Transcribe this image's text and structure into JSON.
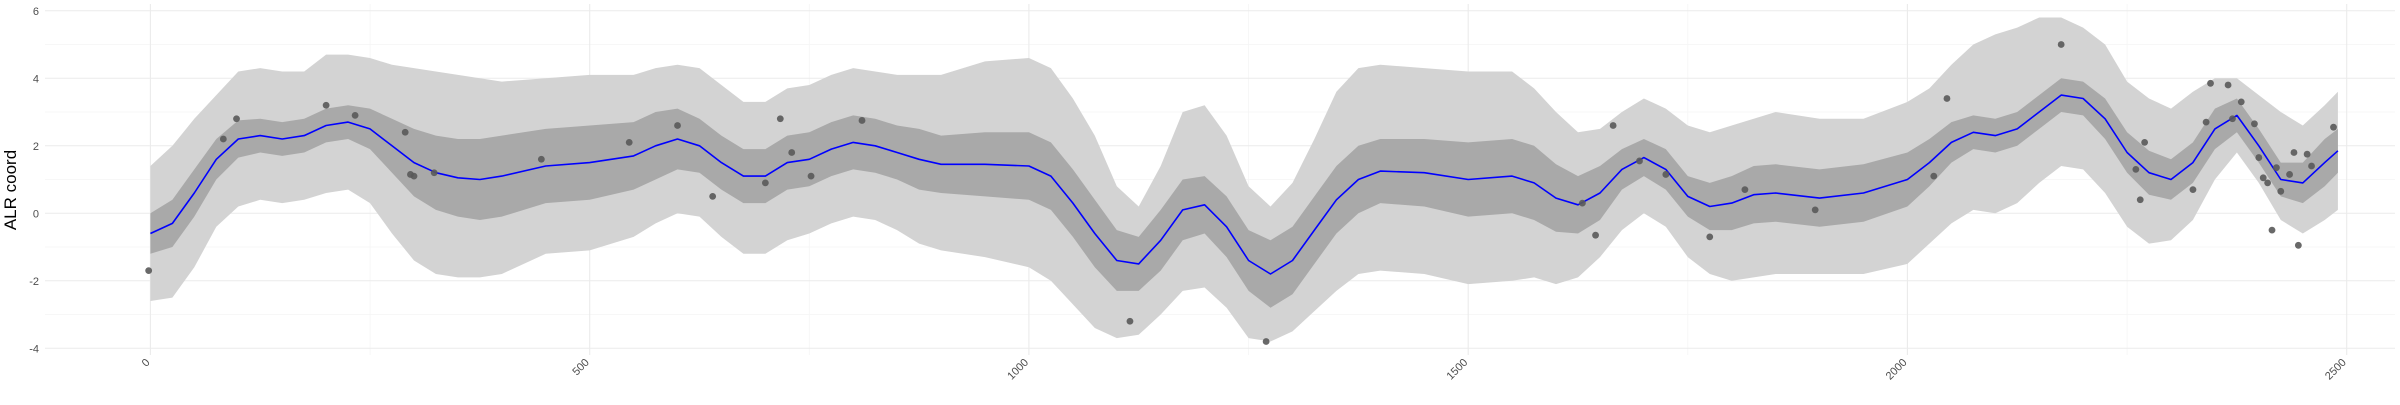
{
  "chart_data": {
    "type": "line",
    "title": "",
    "xlabel": "",
    "ylabel": "ALR coord",
    "xlim": [
      -120,
      2555
    ],
    "ylim": [
      -4.2,
      6.2
    ],
    "x_ticks": [
      0,
      500,
      1000,
      1500,
      2000,
      2500
    ],
    "x_tick_labels": [
      "0",
      "500",
      "1000",
      "1500",
      "2000",
      "2500"
    ],
    "x_tick_rotation_deg": -45,
    "y_ticks": [
      -4,
      -2,
      0,
      2,
      4,
      6
    ],
    "y_tick_labels": [
      "-4",
      "-2",
      "0",
      "2",
      "4",
      "6"
    ],
    "grid": true,
    "colors": {
      "mean_line": "#0000ff",
      "inner_band": "#a9a9a9",
      "outer_band": "#d3d3d3",
      "points": "#595959",
      "grid_major": "#ebebeb",
      "grid_minor": "#f5f5f5"
    },
    "mean_line": {
      "x": [
        0,
        25,
        50,
        75,
        100,
        125,
        150,
        175,
        200,
        225,
        250,
        275,
        300,
        325,
        350,
        375,
        400,
        450,
        500,
        550,
        575,
        600,
        625,
        650,
        675,
        700,
        725,
        750,
        775,
        800,
        825,
        850,
        875,
        900,
        950,
        1000,
        1025,
        1050,
        1075,
        1100,
        1125,
        1150,
        1175,
        1200,
        1225,
        1250,
        1275,
        1300,
        1325,
        1350,
        1375,
        1400,
        1450,
        1500,
        1550,
        1575,
        1600,
        1625,
        1650,
        1675,
        1700,
        1725,
        1750,
        1775,
        1800,
        1825,
        1850,
        1900,
        1950,
        2000,
        2025,
        2050,
        2075,
        2100,
        2125,
        2150,
        2175,
        2200,
        2225,
        2250,
        2275,
        2300,
        2325,
        2350,
        2375,
        2400,
        2425,
        2450,
        2475,
        2490
      ],
      "y": [
        -0.6,
        -0.3,
        0.6,
        1.6,
        2.2,
        2.3,
        2.2,
        2.3,
        2.6,
        2.7,
        2.5,
        2.0,
        1.5,
        1.2,
        1.05,
        1.0,
        1.1,
        1.4,
        1.5,
        1.7,
        2.0,
        2.2,
        2.0,
        1.5,
        1.1,
        1.1,
        1.5,
        1.6,
        1.9,
        2.1,
        2.0,
        1.8,
        1.6,
        1.45,
        1.45,
        1.4,
        1.1,
        0.3,
        -0.6,
        -1.4,
        -1.5,
        -0.8,
        0.1,
        0.25,
        -0.4,
        -1.4,
        -1.8,
        -1.4,
        -0.5,
        0.4,
        1.0,
        1.25,
        1.2,
        1.0,
        1.1,
        0.9,
        0.45,
        0.25,
        0.6,
        1.3,
        1.65,
        1.3,
        0.5,
        0.2,
        0.3,
        0.55,
        0.6,
        0.45,
        0.6,
        1.0,
        1.5,
        2.1,
        2.4,
        2.3,
        2.5,
        3.0,
        3.5,
        3.4,
        2.8,
        1.8,
        1.2,
        1.0,
        1.5,
        2.5,
        2.9,
        2.0,
        1.0,
        0.9,
        1.5,
        1.85
      ]
    },
    "inner_band": {
      "lower": [
        -1.2,
        -1.0,
        -0.1,
        1.0,
        1.65,
        1.8,
        1.7,
        1.8,
        2.1,
        2.2,
        1.9,
        1.2,
        0.5,
        0.1,
        -0.1,
        -0.2,
        -0.1,
        0.3,
        0.4,
        0.7,
        1.0,
        1.3,
        1.2,
        0.7,
        0.3,
        0.3,
        0.7,
        0.8,
        1.1,
        1.3,
        1.2,
        1.0,
        0.7,
        0.6,
        0.5,
        0.4,
        0.1,
        -0.7,
        -1.6,
        -2.3,
        -2.3,
        -1.7,
        -0.8,
        -0.6,
        -1.3,
        -2.3,
        -2.8,
        -2.4,
        -1.5,
        -0.6,
        0.0,
        0.3,
        0.2,
        -0.1,
        0.0,
        -0.2,
        -0.55,
        -0.6,
        -0.2,
        0.7,
        1.1,
        0.7,
        -0.1,
        -0.5,
        -0.5,
        -0.3,
        -0.25,
        -0.4,
        -0.25,
        0.2,
        0.8,
        1.5,
        1.9,
        1.8,
        2.0,
        2.5,
        3.0,
        2.9,
        2.2,
        1.2,
        0.55,
        0.4,
        0.9,
        1.9,
        2.4,
        1.5,
        0.5,
        0.3,
        0.8,
        1.2
      ],
      "upper": [
        0.0,
        0.4,
        1.3,
        2.2,
        2.75,
        2.8,
        2.7,
        2.8,
        3.1,
        3.2,
        3.1,
        2.8,
        2.5,
        2.3,
        2.2,
        2.2,
        2.3,
        2.5,
        2.6,
        2.7,
        3.0,
        3.1,
        2.8,
        2.3,
        1.9,
        1.9,
        2.3,
        2.4,
        2.7,
        2.9,
        2.8,
        2.6,
        2.5,
        2.3,
        2.4,
        2.4,
        2.1,
        1.3,
        0.4,
        -0.5,
        -0.7,
        0.1,
        1.0,
        1.1,
        0.5,
        -0.5,
        -0.8,
        -0.4,
        0.5,
        1.4,
        2.0,
        2.2,
        2.2,
        2.1,
        2.2,
        2.0,
        1.45,
        1.1,
        1.4,
        1.9,
        2.2,
        1.9,
        1.1,
        0.9,
        1.1,
        1.4,
        1.45,
        1.3,
        1.45,
        1.8,
        2.2,
        2.7,
        2.9,
        2.8,
        3.0,
        3.5,
        4.0,
        3.9,
        3.4,
        2.4,
        1.85,
        1.6,
        2.1,
        3.1,
        3.4,
        2.5,
        1.5,
        1.5,
        2.2,
        2.5
      ]
    },
    "outer_band": {
      "lower": [
        -2.6,
        -2.5,
        -1.6,
        -0.4,
        0.2,
        0.4,
        0.3,
        0.4,
        0.6,
        0.7,
        0.3,
        -0.6,
        -1.4,
        -1.8,
        -1.9,
        -1.9,
        -1.8,
        -1.2,
        -1.1,
        -0.7,
        -0.3,
        0.0,
        -0.1,
        -0.7,
        -1.2,
        -1.2,
        -0.8,
        -0.6,
        -0.3,
        -0.1,
        -0.2,
        -0.5,
        -0.9,
        -1.1,
        -1.3,
        -1.6,
        -2.0,
        -2.7,
        -3.4,
        -3.7,
        -3.6,
        -3.0,
        -2.3,
        -2.2,
        -2.8,
        -3.7,
        -3.8,
        -3.5,
        -2.9,
        -2.3,
        -1.8,
        -1.7,
        -1.8,
        -2.1,
        -2.0,
        -1.9,
        -2.1,
        -1.9,
        -1.3,
        -0.5,
        0.0,
        -0.4,
        -1.3,
        -1.8,
        -2.0,
        -1.9,
        -1.8,
        -1.8,
        -1.8,
        -1.5,
        -0.9,
        -0.3,
        0.1,
        0.0,
        0.3,
        0.9,
        1.4,
        1.3,
        0.6,
        -0.4,
        -0.9,
        -0.8,
        -0.2,
        1.0,
        1.8,
        0.9,
        -0.2,
        -0.6,
        -0.2,
        0.1
      ],
      "upper": [
        1.4,
        2.0,
        2.8,
        3.5,
        4.2,
        4.3,
        4.2,
        4.2,
        4.7,
        4.7,
        4.6,
        4.4,
        4.3,
        4.2,
        4.1,
        4.0,
        3.9,
        4.0,
        4.1,
        4.1,
        4.3,
        4.4,
        4.3,
        3.8,
        3.3,
        3.3,
        3.7,
        3.8,
        4.1,
        4.3,
        4.2,
        4.1,
        4.1,
        4.1,
        4.5,
        4.6,
        4.3,
        3.4,
        2.3,
        0.8,
        0.2,
        1.4,
        3.0,
        3.2,
        2.3,
        0.8,
        0.2,
        0.9,
        2.2,
        3.6,
        4.3,
        4.4,
        4.3,
        4.2,
        4.2,
        3.7,
        3.0,
        2.4,
        2.5,
        3.0,
        3.4,
        3.1,
        2.6,
        2.4,
        2.6,
        2.8,
        3.0,
        2.8,
        2.8,
        3.3,
        3.7,
        4.4,
        5.0,
        5.3,
        5.5,
        5.8,
        5.8,
        5.5,
        5.0,
        3.9,
        3.4,
        3.1,
        3.6,
        4.0,
        4.0,
        3.5,
        3.0,
        2.6,
        3.2,
        3.6
      ]
    },
    "points": {
      "x": [
        -2,
        83,
        98,
        200,
        233,
        290,
        296,
        300,
        323,
        445,
        545,
        600,
        640,
        700,
        717,
        730,
        752,
        810,
        1115,
        1270,
        1630,
        1645,
        1665,
        1695,
        1725,
        1775,
        1815,
        1895,
        2030,
        2045,
        2175,
        2260,
        2265,
        2270,
        2325,
        2340,
        2345,
        2365,
        2370,
        2380,
        2395,
        2400,
        2405,
        2410,
        2415,
        2420,
        2425,
        2435,
        2440,
        2445,
        2455,
        2460,
        2485
      ],
      "y": [
        -1.7,
        2.2,
        2.8,
        3.2,
        2.9,
        2.4,
        1.15,
        1.1,
        1.2,
        1.6,
        2.1,
        2.6,
        0.5,
        0.9,
        2.8,
        1.8,
        1.1,
        2.75,
        -3.2,
        -3.8,
        0.3,
        -0.65,
        2.6,
        1.55,
        1.15,
        -0.7,
        0.7,
        0.1,
        1.1,
        3.4,
        5.0,
        1.3,
        0.4,
        2.1,
        0.7,
        2.7,
        3.85,
        3.8,
        2.8,
        3.3,
        2.65,
        1.65,
        1.05,
        0.9,
        -0.5,
        1.35,
        0.65,
        1.15,
        1.8,
        -0.95,
        1.75,
        1.4,
        2.55
      ]
    }
  }
}
